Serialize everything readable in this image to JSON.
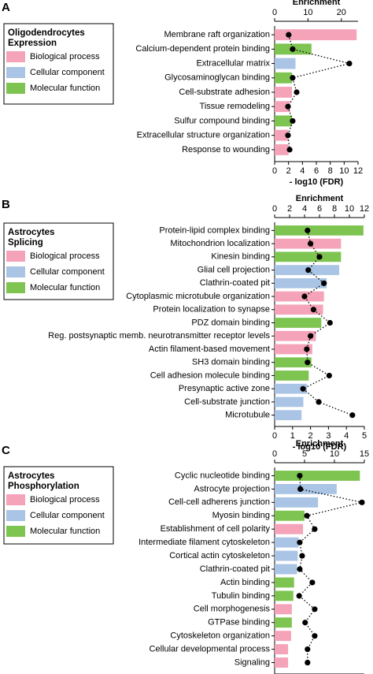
{
  "chart_data": [
    {
      "type": "bar",
      "panel": "A",
      "legend_title": [
        "Oligodendrocytes",
        "Expression"
      ],
      "legend": [
        {
          "name": "Biological process",
          "color": "#f4a3b8"
        },
        {
          "name": "Cellular component",
          "color": "#a9c4e4"
        },
        {
          "name": "Molecular function",
          "color": "#7dc450"
        }
      ],
      "categories": [
        "Membrane raft organization",
        "Calcium-dependent protein binding",
        "Extracellular matrix",
        "Glycosaminoglycan binding",
        "Cell-substrate adhesion",
        "Tissue remodeling",
        "Sulfur compound binding",
        "Extracellular structure organization",
        "Response to wounding"
      ],
      "values": [
        11.8,
        5.3,
        3.0,
        2.5,
        2.5,
        2.2,
        2.5,
        2.0,
        2.0
      ],
      "colors": [
        "#f4a3b8",
        "#7dc450",
        "#a9c4e4",
        "#7dc450",
        "#f4a3b8",
        "#f4a3b8",
        "#7dc450",
        "#f4a3b8",
        "#f4a3b8"
      ],
      "enrichment": [
        4.2,
        5.4,
        22.4,
        5.4,
        6.6,
        4.0,
        5.4,
        4.0,
        4.5
      ],
      "xlabel": "- log10 (FDR)",
      "xlim": [
        0,
        12
      ],
      "xticks": [
        0,
        2,
        4,
        6,
        8,
        10,
        12
      ],
      "x2label": "Enrichment",
      "x2lim": [
        0,
        25
      ],
      "x2ticks": [
        0,
        10,
        20
      ]
    },
    {
      "type": "bar",
      "panel": "B",
      "legend_title": [
        "Astrocytes",
        "Splicing"
      ],
      "legend": [
        {
          "name": "Biological process",
          "color": "#f4a3b8"
        },
        {
          "name": "Cellular component",
          "color": "#a9c4e4"
        },
        {
          "name": "Molecular function",
          "color": "#7dc450"
        }
      ],
      "categories": [
        "Protein-lipid complex binding",
        "Mitochondrion localization",
        "Kinesin binding",
        "Glial cell projection",
        "Clathrin-coated pit",
        "Cytoplasmic microtubule organization",
        "Protein localization to synapse",
        "PDZ domain binding",
        "Reg. postsynaptic memb. neurotransmitter receptor levels",
        "Actin filament-based movement",
        "SH3 domain binding",
        "Cell adhesion molecule binding",
        "Presynaptic active zone",
        "Cell-substrate junction",
        "Microtubule"
      ],
      "values": [
        4.95,
        3.7,
        3.7,
        3.6,
        2.9,
        2.75,
        2.7,
        2.6,
        2.3,
        2.1,
        2.05,
        1.9,
        1.8,
        1.6,
        1.5
      ],
      "colors": [
        "#7dc450",
        "#f4a3b8",
        "#7dc450",
        "#a9c4e4",
        "#a9c4e4",
        "#f4a3b8",
        "#f4a3b8",
        "#7dc450",
        "#f4a3b8",
        "#f4a3b8",
        "#7dc450",
        "#7dc450",
        "#a9c4e4",
        "#a9c4e4",
        "#a9c4e4"
      ],
      "enrichment": [
        4.4,
        4.8,
        6.0,
        4.5,
        6.6,
        4.0,
        5.2,
        7.4,
        4.8,
        4.3,
        4.4,
        7.3,
        3.8,
        5.9,
        10.4
      ],
      "xlabel": "- log10 (FDR)",
      "xlim": [
        0,
        5
      ],
      "xticks": [
        0,
        1,
        2,
        3,
        4,
        5
      ],
      "x2label": "Enrichment",
      "x2lim": [
        0,
        12
      ],
      "x2ticks": [
        0,
        2,
        4,
        6,
        8,
        10,
        12
      ]
    },
    {
      "type": "bar",
      "panel": "C",
      "legend_title": [
        "Astrocytes",
        "Phosphorylation"
      ],
      "legend": [
        {
          "name": "Biological process",
          "color": "#f4a3b8"
        },
        {
          "name": "Cellular component",
          "color": "#a9c4e4"
        },
        {
          "name": "Molecular function",
          "color": "#7dc450"
        }
      ],
      "categories": [
        "Cyclic nucleotide binding",
        "Astrocyte projection",
        "Cell-cell adherens junction",
        "Myosin binding",
        "Establishment of cell polarity",
        "Intermediate filament cytoskeleton",
        "Cortical actin cytoskeleton",
        "Clathrin-coated pit",
        "Actin binding",
        "Tubulin binding",
        "Cell morphogenesis",
        "GTPase binding",
        "Cytoskeleton organization",
        "Cellular developmental process",
        "Signaling"
      ],
      "values": [
        5.7,
        4.15,
        2.9,
        2.0,
        1.9,
        1.6,
        1.55,
        1.5,
        1.3,
        1.25,
        1.15,
        1.15,
        1.1,
        0.9,
        0.9
      ],
      "colors": [
        "#7dc450",
        "#a9c4e4",
        "#a9c4e4",
        "#7dc450",
        "#f4a3b8",
        "#a9c4e4",
        "#a9c4e4",
        "#a9c4e4",
        "#7dc450",
        "#7dc450",
        "#f4a3b8",
        "#7dc450",
        "#f4a3b8",
        "#f4a3b8",
        "#f4a3b8"
      ],
      "enrichment": [
        4.2,
        4.3,
        14.6,
        5.4,
        6.7,
        4.2,
        4.6,
        4.2,
        6.3,
        4.1,
        6.7,
        5.1,
        6.7,
        5.5,
        5.5
      ],
      "xlabel": "- log10 (FDR)",
      "xlim": [
        0,
        6
      ],
      "xticks": [
        0,
        2,
        4,
        6
      ],
      "x2label": "Enrichment",
      "x2lim": [
        0,
        15
      ],
      "x2ticks": [
        0,
        5,
        10,
        15
      ]
    }
  ]
}
